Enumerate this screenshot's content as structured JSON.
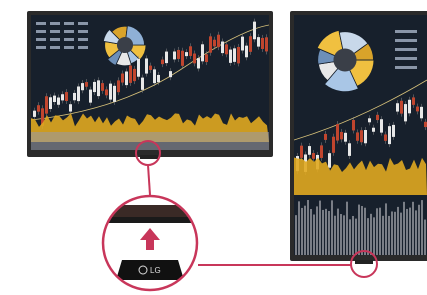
{
  "logo": "LG"
}
